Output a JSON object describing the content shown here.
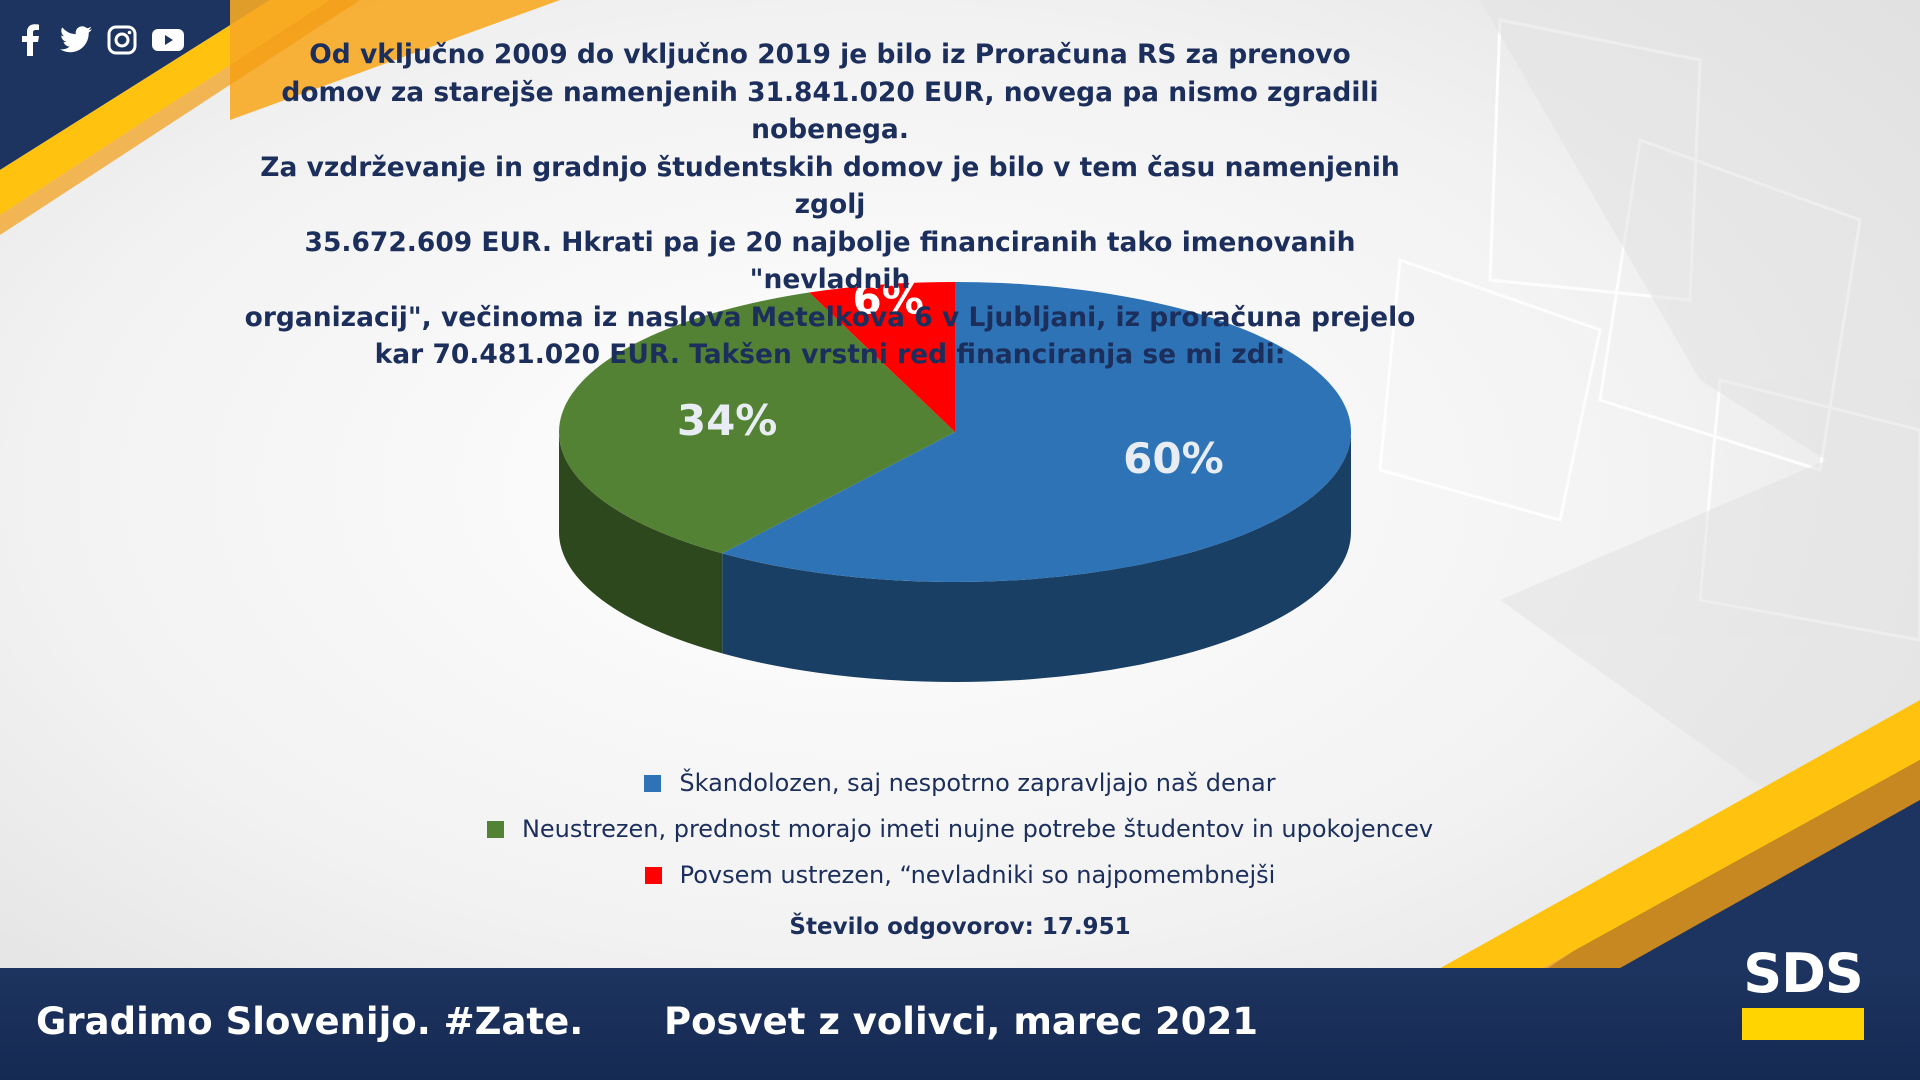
{
  "social": {
    "icons": [
      "facebook-icon",
      "twitter-icon",
      "instagram-icon",
      "youtube-icon"
    ]
  },
  "headline": {
    "lines": [
      "Od vključno 2009 do vključno 2019 je bilo iz Proračuna RS za prenovo",
      "domov za starejše namenjenih 31.841.020 EUR, novega pa nismo zgradili nobenega.",
      "Za vzdrževanje in gradnjo študentskih domov je bilo v tem času namenjenih zgolj",
      "35.672.609 EUR. Hkrati pa je 20 najbolje financiranih tako imenovanih \"nevladnih",
      "organizacij\", večinoma iz naslova Metelkova 6 v Ljubljani, iz proračuna prejelo",
      "kar 70.481.020 EUR. Takšen vrstni red financiranja se mi zdi:"
    ]
  },
  "chart_data": {
    "type": "pie",
    "title": "",
    "categories": [
      "Škandolozen, saj nespotrno zapravljajo naš denar",
      "Neustrezen, prednost morajo imeti nujne potrebe študentov in upokojencev",
      "Povsem ustrezen, “nevladniki so najpomembnejši"
    ],
    "values": [
      60,
      34,
      6
    ],
    "labels": [
      "60%",
      "34%",
      "6%"
    ],
    "colors": [
      "#2e73b6",
      "#548235",
      "#ff0000"
    ],
    "legend_position": "bottom"
  },
  "responses": "Število odgovorov: 17.951",
  "footer": {
    "left": "Gradimo Slovenijo. #Zate.",
    "right": "Posvet z volivci, marec 2021"
  },
  "logo": {
    "text": "SDS",
    "bar_color": "#ffd400"
  },
  "accent_colors": {
    "navy": "#1c2f5c",
    "yellow": "#ffd400",
    "orange": "#f7a823"
  }
}
